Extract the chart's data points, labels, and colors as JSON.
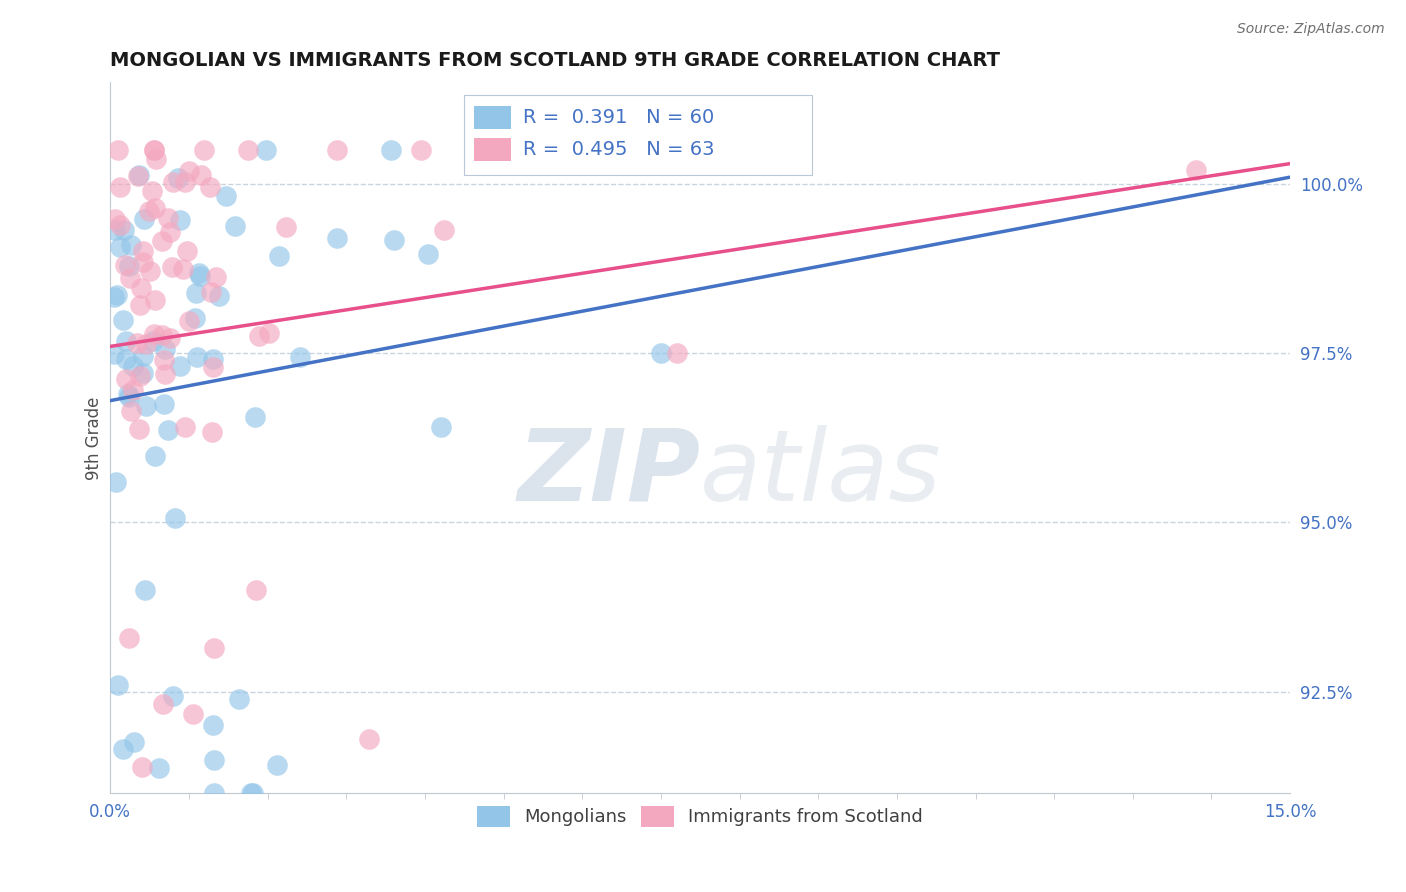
{
  "title": "MONGOLIAN VS IMMIGRANTS FROM SCOTLAND 9TH GRADE CORRELATION CHART",
  "source_text": "Source: ZipAtlas.com",
  "ylabel": "9th Grade",
  "watermark_zip": "ZIP",
  "watermark_atlas": "atlas",
  "xlim": [
    0.0,
    15.0
  ],
  "ylim": [
    91.0,
    101.5
  ],
  "yticks": [
    92.5,
    95.0,
    97.5,
    100.0
  ],
  "ytick_labels": [
    "92.5%",
    "95.0%",
    "97.5%",
    "100.0%"
  ],
  "mongolian_color": "#92C5E8",
  "scotland_color": "#F4A8C0",
  "mongolian_R": 0.391,
  "mongolian_N": 60,
  "scotland_R": 0.495,
  "scotland_N": 63,
  "mongolian_line_color": "#4472C4",
  "scotland_line_color": "#E8508C",
  "legend_color": "#4472C4",
  "grid_color": "#C8D4E0",
  "tick_color": "#4472C4",
  "spine_color": "#C0C8D0"
}
